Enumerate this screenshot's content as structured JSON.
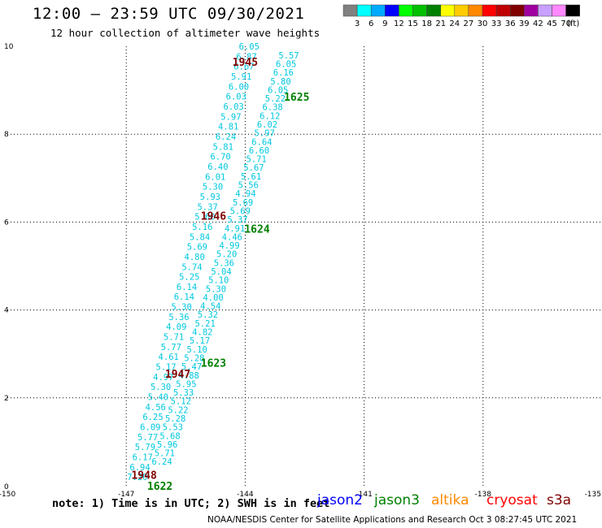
{
  "header": {
    "title": "12:00 – 23:59 UTC 09/30/2021",
    "subtitle": "12 hour collection of altimeter wave heights"
  },
  "legend": {
    "unit": "(ft)",
    "items": [
      {
        "label": "3",
        "color": "#808080"
      },
      {
        "label": "6",
        "color": "#00ffff"
      },
      {
        "label": "9",
        "color": "#00aaff"
      },
      {
        "label": "12",
        "color": "#0000ff"
      },
      {
        "label": "15",
        "color": "#00ff00"
      },
      {
        "label": "18",
        "color": "#00c000"
      },
      {
        "label": "21",
        "color": "#008000"
      },
      {
        "label": "24",
        "color": "#ffff00"
      },
      {
        "label": "27",
        "color": "#ffcc00"
      },
      {
        "label": "30",
        "color": "#ff8800"
      },
      {
        "label": "33",
        "color": "#ff0000"
      },
      {
        "label": "36",
        "color": "#c00000"
      },
      {
        "label": "39",
        "color": "#800000"
      },
      {
        "label": "42",
        "color": "#a000a0"
      },
      {
        "label": "45",
        "color": "#c8a0ff"
      },
      {
        "label": "70",
        "color": "#ff88ff"
      },
      {
        "label": "",
        "color": "#000000"
      }
    ]
  },
  "axes": {
    "x_ticks": [
      "-150",
      "-147",
      "-144",
      "-141",
      "-138",
      "-135"
    ],
    "y_ticks": [
      "0",
      "2",
      "4",
      "6",
      "8",
      "10"
    ]
  },
  "map_data": {
    "swh_color": "#00c8e0",
    "tracks": [
      {
        "id": "track-a",
        "start": {
          "lon": -146.72,
          "lat": 0.2
        },
        "end": {
          "lon": -143.9,
          "lat": 10.0
        },
        "values": [
          "7.20",
          "6.94",
          "6.17",
          "5.79",
          "5.77",
          "6.09",
          "6.25",
          "4.56",
          "5.40",
          "5.30",
          "4.97",
          "5.17",
          "4.61",
          "5.77",
          "5.71",
          "4.09",
          "5.36",
          "5.30",
          "6.14",
          "6.14",
          "5.25",
          "5.74",
          "4.80",
          "5.69",
          "5.84",
          "5.16",
          "5.60",
          "5.37",
          "5.93",
          "5.30",
          "6.01",
          "6.40",
          "6.70",
          "5.81",
          "6.24",
          "4.81",
          "5.97",
          "6.03",
          "6.03",
          "6.00",
          "5.91",
          "6.67",
          "6.87",
          "6.05"
        ]
      },
      {
        "id": "track-b",
        "start": {
          "lon": -146.1,
          "lat": 0.55
        },
        "end": {
          "lon": -142.9,
          "lat": 9.8
        },
        "values": [
          "6.24",
          "5.71",
          "5.96",
          "5.68",
          "5.53",
          "5.28",
          "5.22",
          "5.12",
          "5.33",
          "5.95",
          "4.88",
          "5.47",
          "5.28",
          "5.10",
          "5.17",
          "4.82",
          "5.21",
          "5.32",
          "4.54",
          "4.00",
          "5.30",
          "5.10",
          "5.04",
          "5.36",
          "5.20",
          "4.99",
          "4.46",
          "4.91",
          "5.37",
          "5.69",
          "5.69",
          "4.94",
          "5.56",
          "5.61",
          "5.67",
          "5.71",
          "6.60",
          "6.64",
          "5.97",
          "6.02",
          "6.12",
          "6.38",
          "5.22",
          "6.05",
          "5.80",
          "6.16",
          "6.05",
          "5.57"
        ]
      }
    ],
    "time_labels": [
      {
        "text": "1945",
        "color": "#800000",
        "lon": -144.0,
        "lat": 9.65
      },
      {
        "text": "1946",
        "color": "#800000",
        "lon": -144.8,
        "lat": 6.15
      },
      {
        "text": "1947",
        "color": "#800000",
        "lon": -145.7,
        "lat": 2.55
      },
      {
        "text": "1948",
        "color": "#800000",
        "lon": -146.55,
        "lat": 0.25
      },
      {
        "text": "1625",
        "color": "#008000",
        "lon": -142.7,
        "lat": 8.85
      },
      {
        "text": "1624",
        "color": "#008000",
        "lon": -143.7,
        "lat": 5.85
      },
      {
        "text": "1623",
        "color": "#008000",
        "lon": -144.8,
        "lat": 2.8
      },
      {
        "text": "1622",
        "color": "#008000",
        "lon": -146.15,
        "lat": 0.0
      }
    ]
  },
  "footer": {
    "note": "note: 1) Time is in UTC; 2) SWH is in feet",
    "missions": [
      {
        "name": "jason2",
        "color": "#0000ff"
      },
      {
        "name": "jason3",
        "color": "#008000"
      },
      {
        "name": "altika",
        "color": "#ff8800"
      },
      {
        "name": "cryosat",
        "color": "#ff0000"
      },
      {
        "name": "s3a",
        "color": "#800000"
      }
    ],
    "credit": "NOAA/NESDIS Center for Satellite Applications and Research   Oct  3 08:27:45 UTC 2021"
  }
}
